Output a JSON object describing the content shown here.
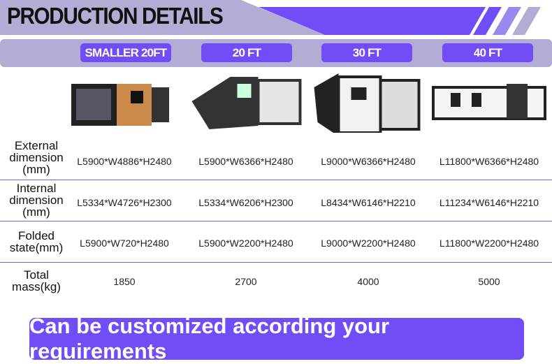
{
  "title": "PRODUCTION DETAILS",
  "colors": {
    "accent": "#714df7",
    "band": "#b3acd4"
  },
  "columns": [
    "SMALLER 20FT",
    "20 FT",
    "30 FT",
    "40 FT"
  ],
  "rows": [
    {
      "label": "External dimension (mm)",
      "values": [
        "L5900*W4886*H2480",
        "L5900*W6366*H2480",
        "L9000*W6366*H2480",
        "L11800*W6366*H2480"
      ]
    },
    {
      "label": "Internal dimension (mm)",
      "values": [
        "L5334*W4726*H2300",
        "L5334*W6206*H2300",
        "L8434*W6146*H2210",
        "L11234*W6146*H2210"
      ]
    },
    {
      "label": "Folded state(mm)",
      "values": [
        "L5900*W720*H2480",
        "L5900*W2200*H2480",
        "L9000*W2200*H2480",
        "L11800*W2200*H2480"
      ]
    },
    {
      "label": "Total mass(kg)",
      "values": [
        "1850",
        "2700",
        "4000",
        "5000"
      ]
    }
  ],
  "cta": "Can be customized according your requirements"
}
